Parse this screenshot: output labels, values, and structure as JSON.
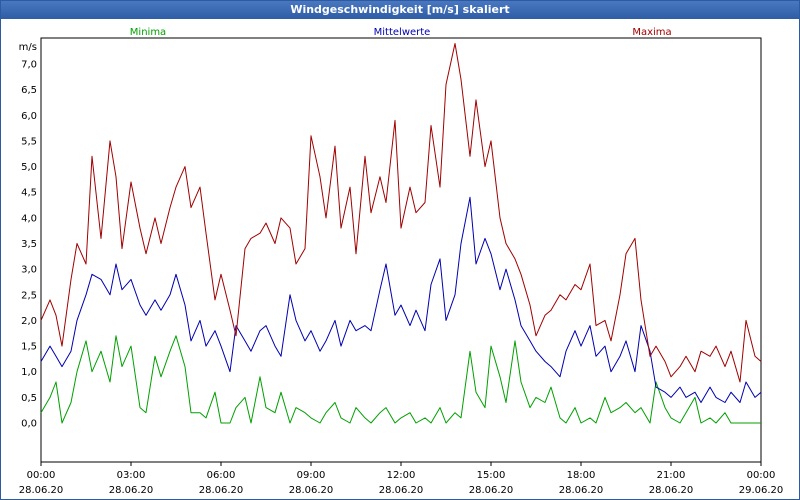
{
  "window": {
    "title": "Windgeschwindigkeit [m/s] skaliert"
  },
  "chart_data": {
    "type": "line",
    "title": "Windgeschwindigkeit [m/s] skaliert",
    "ylabel": "m/s",
    "ylim": [
      -0.2,
      7.8
    ],
    "yticks": [
      "0,0",
      "0,5",
      "1,0",
      "1,5",
      "2,0",
      "2,5",
      "3,0",
      "3,5",
      "4,0",
      "4,5",
      "5,0",
      "5,5",
      "6,0",
      "6,5",
      "7,0"
    ],
    "xlim": [
      0,
      24
    ],
    "xticks": [
      {
        "time": "00:00",
        "date": "28.06.20"
      },
      {
        "time": "03:00",
        "date": "28.06.20"
      },
      {
        "time": "06:00",
        "date": "28.06.20"
      },
      {
        "time": "09:00",
        "date": "28.06.20"
      },
      {
        "time": "12:00",
        "date": "28.06.20"
      },
      {
        "time": "15:00",
        "date": "28.06.20"
      },
      {
        "time": "18:00",
        "date": "28.06.20"
      },
      {
        "time": "21:00",
        "date": "28.06.20"
      },
      {
        "time": "00:00",
        "date": "29.06.20"
      }
    ],
    "grid": true,
    "legend": "top",
    "series": [
      {
        "name": "Minima",
        "color": "#00a000",
        "x": [
          0,
          0.3,
          0.5,
          0.7,
          1.0,
          1.2,
          1.5,
          1.7,
          2.0,
          2.3,
          2.5,
          2.7,
          3.0,
          3.3,
          3.5,
          3.8,
          4.0,
          4.3,
          4.5,
          4.8,
          5.0,
          5.3,
          5.5,
          5.8,
          6.0,
          6.3,
          6.5,
          6.8,
          7.0,
          7.3,
          7.5,
          7.8,
          8.0,
          8.3,
          8.5,
          8.8,
          9.0,
          9.3,
          9.5,
          9.8,
          10.0,
          10.3,
          10.5,
          10.8,
          11.0,
          11.3,
          11.5,
          11.8,
          12.0,
          12.3,
          12.5,
          12.8,
          13.0,
          13.3,
          13.5,
          13.8,
          14.0,
          14.3,
          14.5,
          14.8,
          15.0,
          15.3,
          15.5,
          15.8,
          16.0,
          16.3,
          16.5,
          16.8,
          17.0,
          17.3,
          17.5,
          17.8,
          18.0,
          18.3,
          18.5,
          18.8,
          19.0,
          19.3,
          19.5,
          19.8,
          20.0,
          20.3,
          20.5,
          20.8,
          21.0,
          21.3,
          21.5,
          21.8,
          22.0,
          22.3,
          22.5,
          22.8,
          23.0,
          23.3,
          23.5,
          23.8,
          24.0
        ],
        "values": [
          0.2,
          0.5,
          0.8,
          0.0,
          0.4,
          1.0,
          1.6,
          1.0,
          1.4,
          0.8,
          1.7,
          1.1,
          1.5,
          0.3,
          0.2,
          1.3,
          0.9,
          1.4,
          1.7,
          1.1,
          0.2,
          0.2,
          0.1,
          0.6,
          0.0,
          0.0,
          0.3,
          0.5,
          0.0,
          0.9,
          0.3,
          0.2,
          0.6,
          0.0,
          0.3,
          0.2,
          0.1,
          0.0,
          0.2,
          0.4,
          0.1,
          0.0,
          0.3,
          0.1,
          0.0,
          0.2,
          0.3,
          0.0,
          0.1,
          0.2,
          0.0,
          0.1,
          0.0,
          0.3,
          0.0,
          0.2,
          0.1,
          1.4,
          0.6,
          0.3,
          1.5,
          0.9,
          0.4,
          1.6,
          0.8,
          0.3,
          0.5,
          0.4,
          0.7,
          0.1,
          0.0,
          0.3,
          0.0,
          0.1,
          0.0,
          0.5,
          0.2,
          0.3,
          0.4,
          0.2,
          0.3,
          0.0,
          0.8,
          0.3,
          0.1,
          0.0,
          0.2,
          0.5,
          0.0,
          0.1,
          0.0,
          0.2,
          0.0,
          0.0,
          0.0,
          0.0,
          0.0
        ]
      },
      {
        "name": "Mittelwerte",
        "color": "#0000b0",
        "x": [
          0,
          0.3,
          0.5,
          0.7,
          1.0,
          1.2,
          1.5,
          1.7,
          2.0,
          2.3,
          2.5,
          2.7,
          3.0,
          3.3,
          3.5,
          3.8,
          4.0,
          4.3,
          4.5,
          4.8,
          5.0,
          5.3,
          5.5,
          5.8,
          6.0,
          6.3,
          6.5,
          6.8,
          7.0,
          7.3,
          7.5,
          7.8,
          8.0,
          8.3,
          8.5,
          8.8,
          9.0,
          9.3,
          9.5,
          9.8,
          10.0,
          10.3,
          10.5,
          10.8,
          11.0,
          11.3,
          11.5,
          11.8,
          12.0,
          12.3,
          12.5,
          12.8,
          13.0,
          13.3,
          13.5,
          13.8,
          14.0,
          14.3,
          14.5,
          14.8,
          15.0,
          15.3,
          15.5,
          15.8,
          16.0,
          16.3,
          16.5,
          16.8,
          17.0,
          17.3,
          17.5,
          17.8,
          18.0,
          18.3,
          18.5,
          18.8,
          19.0,
          19.3,
          19.5,
          19.8,
          20.0,
          20.3,
          20.5,
          20.8,
          21.0,
          21.3,
          21.5,
          21.8,
          22.0,
          22.3,
          22.5,
          22.8,
          23.0,
          23.3,
          23.5,
          23.8,
          24.0
        ],
        "values": [
          1.2,
          1.5,
          1.3,
          1.1,
          1.4,
          2.0,
          2.5,
          2.9,
          2.8,
          2.5,
          3.1,
          2.6,
          2.8,
          2.3,
          2.1,
          2.4,
          2.2,
          2.5,
          2.9,
          2.3,
          1.6,
          2.0,
          1.5,
          1.8,
          1.5,
          1.0,
          1.9,
          1.6,
          1.4,
          1.8,
          1.9,
          1.5,
          1.3,
          2.5,
          2.0,
          1.6,
          1.8,
          1.4,
          1.6,
          2.0,
          1.5,
          2.0,
          1.8,
          1.9,
          1.8,
          2.6,
          3.1,
          2.1,
          2.3,
          1.9,
          2.2,
          1.8,
          2.7,
          3.2,
          2.0,
          2.5,
          3.5,
          4.4,
          3.1,
          3.6,
          3.3,
          2.6,
          3.0,
          2.4,
          1.9,
          1.6,
          1.4,
          1.2,
          1.1,
          0.9,
          1.4,
          1.8,
          1.5,
          1.9,
          1.3,
          1.5,
          1.0,
          1.3,
          1.6,
          1.0,
          1.9,
          1.4,
          0.7,
          0.6,
          0.5,
          0.7,
          0.5,
          0.6,
          0.4,
          0.7,
          0.5,
          0.4,
          0.6,
          0.4,
          0.8,
          0.5,
          0.6
        ]
      },
      {
        "name": "Maxima",
        "color": "#a00000",
        "x": [
          0,
          0.3,
          0.5,
          0.7,
          1.0,
          1.2,
          1.5,
          1.7,
          2.0,
          2.3,
          2.5,
          2.7,
          3.0,
          3.3,
          3.5,
          3.8,
          4.0,
          4.3,
          4.5,
          4.8,
          5.0,
          5.3,
          5.5,
          5.8,
          6.0,
          6.3,
          6.5,
          6.8,
          7.0,
          7.3,
          7.5,
          7.8,
          8.0,
          8.3,
          8.5,
          8.8,
          9.0,
          9.3,
          9.5,
          9.8,
          10.0,
          10.3,
          10.5,
          10.8,
          11.0,
          11.3,
          11.5,
          11.8,
          12.0,
          12.3,
          12.5,
          12.8,
          13.0,
          13.3,
          13.5,
          13.8,
          14.0,
          14.3,
          14.5,
          14.8,
          15.0,
          15.3,
          15.5,
          15.8,
          16.0,
          16.3,
          16.5,
          16.8,
          17.0,
          17.3,
          17.5,
          17.8,
          18.0,
          18.3,
          18.5,
          18.8,
          19.0,
          19.3,
          19.5,
          19.8,
          20.0,
          20.3,
          20.5,
          20.8,
          21.0,
          21.3,
          21.5,
          21.8,
          22.0,
          22.3,
          22.5,
          22.8,
          23.0,
          23.3,
          23.5,
          23.8,
          24.0
        ],
        "values": [
          2.0,
          2.4,
          2.1,
          1.5,
          2.8,
          3.5,
          3.1,
          5.2,
          3.6,
          5.5,
          4.8,
          3.4,
          4.7,
          3.8,
          3.3,
          4.0,
          3.5,
          4.2,
          4.6,
          5.0,
          4.2,
          4.6,
          3.7,
          2.4,
          2.9,
          2.2,
          1.7,
          3.4,
          3.6,
          3.7,
          3.9,
          3.5,
          4.0,
          3.8,
          3.1,
          3.4,
          5.6,
          4.8,
          4.0,
          5.4,
          3.8,
          4.6,
          3.3,
          5.2,
          4.1,
          4.8,
          4.3,
          5.9,
          3.8,
          4.6,
          4.1,
          4.3,
          5.8,
          4.6,
          6.6,
          7.4,
          6.7,
          5.2,
          6.3,
          5.0,
          5.5,
          4.0,
          3.5,
          3.2,
          2.9,
          2.3,
          1.7,
          2.1,
          2.2,
          2.5,
          2.4,
          2.7,
          2.6,
          3.1,
          1.9,
          2.0,
          1.6,
          2.5,
          3.3,
          3.6,
          2.4,
          1.3,
          1.5,
          1.2,
          0.9,
          1.1,
          1.3,
          1.0,
          1.4,
          1.3,
          1.5,
          1.1,
          1.4,
          0.8,
          2.0,
          1.3,
          1.2
        ]
      }
    ]
  }
}
